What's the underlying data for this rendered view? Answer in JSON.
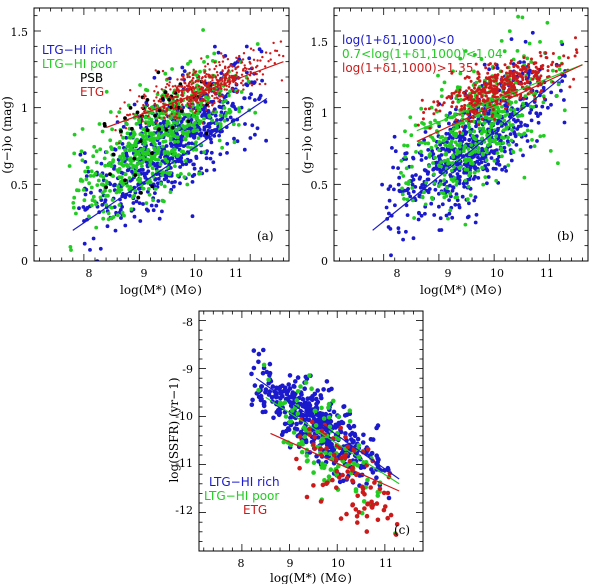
{
  "figure": {
    "width": 600,
    "height": 584
  },
  "colors": {
    "ltg_rich": "#1a1acc",
    "ltg_poor": "#22cc22",
    "psb": "#000000",
    "etg": "#cc1a1a"
  },
  "chart_data": [
    {
      "id": "a",
      "type": "scatter",
      "panel_label": "(a)",
      "xlabel": "log(M*) (M⊙)",
      "ylabel": "(g−i)o (mag)",
      "xlim": [
        7.1,
        11.7
      ],
      "ylim": [
        0,
        1.65
      ],
      "xticks": [
        "8",
        "9",
        "10",
        "11"
      ],
      "yticks": [
        "0",
        "0.5",
        "1",
        "1.5"
      ],
      "legend": [
        {
          "label": "LTG−HI rich",
          "color": "#1a1acc"
        },
        {
          "label": "LTG−HI poor",
          "color": "#22cc22"
        },
        {
          "label": "PSB",
          "color": "#000000"
        },
        {
          "label": "ETG",
          "color": "#cc1a1a"
        }
      ],
      "series": [
        {
          "name": "LTG−HI rich",
          "color": "#1a1acc",
          "n": 700,
          "xmean": 9.6,
          "xsd": 0.75,
          "slope": 0.26,
          "x0": 8,
          "y0": 0.34,
          "ysd": 0.16,
          "xmin": 7.9,
          "xmax": 11.3,
          "size": 1.9
        },
        {
          "name": "LTG−HI poor",
          "color": "#22cc22",
          "n": 600,
          "xmean": 9.3,
          "xsd": 0.7,
          "slope": 0.24,
          "x0": 8,
          "y0": 0.47,
          "ysd": 0.16,
          "xmin": 7.7,
          "xmax": 11.2,
          "size": 1.9
        },
        {
          "name": "PSB",
          "color": "#000000",
          "n": 45,
          "xmean": 9.2,
          "xsd": 0.55,
          "slope": 0.22,
          "x0": 8,
          "y0": 0.6,
          "ysd": 0.18,
          "xmin": 8.3,
          "xmax": 10.4,
          "size": 1.9
        },
        {
          "name": "ETG",
          "color": "#cc1a1a",
          "n": 480,
          "xmean": 10.1,
          "xsd": 0.6,
          "slope": 0.13,
          "x0": 8.5,
          "y0": 0.92,
          "ysd": 0.07,
          "xmin": 8.5,
          "xmax": 11.6,
          "size": 1.2
        }
      ],
      "fits": [
        {
          "color": "#1a1acc",
          "x": [
            7.8,
            11.3
          ],
          "y": [
            0.2,
            1.06
          ]
        },
        {
          "color": "#cc1a1a",
          "x": [
            8.4,
            11.6
          ],
          "y": [
            0.87,
            1.3
          ]
        }
      ]
    },
    {
      "id": "b",
      "type": "scatter",
      "panel_label": "(b)",
      "xlabel": "log(M*) (M⊙)",
      "ylabel": "(g−i)o (mag)",
      "xlim": [
        7.1,
        11.7
      ],
      "ylim": [
        0,
        1.65
      ],
      "xticks": [
        "8",
        "9",
        "10",
        "11"
      ],
      "yticks": [
        "0",
        "0.5",
        "1",
        "1.5"
      ],
      "legend": [
        {
          "label": "log(1+δ1,1000)<0",
          "color": "#1a1acc"
        },
        {
          "label": "0.7<log(1+δ1,1000)<1.04",
          "color": "#22cc22"
        },
        {
          "label": "log(1+δ1,1000)>1.35",
          "color": "#cc1a1a"
        }
      ],
      "series": [
        {
          "name": "log(1+δ1,1000)<0",
          "color": "#1a1acc",
          "n": 650,
          "xmean": 9.6,
          "xsd": 0.7,
          "slope": 0.26,
          "x0": 8,
          "y0": 0.34,
          "ysd": 0.17,
          "xmin": 7.9,
          "xmax": 11.3,
          "size": 1.9
        },
        {
          "name": "0.7<log(1+δ1,1000)<1.04",
          "color": "#22cc22",
          "n": 450,
          "xmean": 9.7,
          "xsd": 0.65,
          "slope": 0.22,
          "x0": 8,
          "y0": 0.5,
          "ysd": 0.2,
          "xmin": 8.3,
          "xmax": 11.3,
          "size": 1.9
        },
        {
          "name": "log(1+δ1,1000)>1.35",
          "color": "#cc1a1a",
          "n": 420,
          "xmean": 10.1,
          "xsd": 0.55,
          "slope": 0.13,
          "x0": 8.5,
          "y0": 0.92,
          "ysd": 0.07,
          "xmin": 8.6,
          "xmax": 11.5,
          "size": 1.5
        }
      ],
      "fits": [
        {
          "color": "#1a1acc",
          "x": [
            7.8,
            11.3
          ],
          "y": [
            0.2,
            1.22
          ]
        },
        {
          "color": "#22cc22",
          "x": [
            8.6,
            11.6
          ],
          "y": [
            0.85,
            1.28
          ]
        },
        {
          "color": "#cc1a1a",
          "x": [
            8.6,
            11.6
          ],
          "y": [
            0.78,
            1.28
          ]
        }
      ]
    },
    {
      "id": "c",
      "type": "scatter",
      "panel_label": "(c)",
      "xlabel": "log(M*) (M⊙)",
      "ylabel": "log(SSFR) (yr−1)",
      "xlim": [
        7.1,
        11.8
      ],
      "ylim": [
        -12.8,
        -7.8
      ],
      "xticks": [
        "8",
        "9",
        "10",
        "11"
      ],
      "yticks": [
        "-8",
        "-9",
        "-10",
        "-11",
        "-12"
      ],
      "legend": [
        {
          "label": "LTG−HI rich",
          "color": "#1a1acc"
        },
        {
          "label": "LTG−HI poor",
          "color": "#22cc22"
        },
        {
          "label": "ETG",
          "color": "#cc1a1a"
        }
      ],
      "series": [
        {
          "name": "LTG−HI rich",
          "color": "#1a1acc",
          "n": 460,
          "xmean": 9.6,
          "xsd": 0.65,
          "slope": -0.7,
          "x0": 8.3,
          "y0": -9.25,
          "ysd": 0.35,
          "xmin": 8.2,
          "xmax": 11.3,
          "size": 2.3
        },
        {
          "name": "LTG−HI poor",
          "color": "#22cc22",
          "n": 120,
          "xmean": 9.8,
          "xsd": 0.6,
          "slope": -0.72,
          "x0": 8.3,
          "y0": -9.55,
          "ysd": 0.45,
          "xmin": 8.3,
          "xmax": 11.3,
          "size": 2.3
        },
        {
          "name": "ETG",
          "color": "#cc1a1a",
          "n": 90,
          "xmean": 10.3,
          "xsd": 0.5,
          "slope": -0.6,
          "x0": 8.6,
          "y0": -10.3,
          "ysd": 0.45,
          "xmin": 8.7,
          "xmax": 11.3,
          "size": 2.3
        }
      ],
      "fits": [
        {
          "color": "#1a1acc",
          "x": [
            8.3,
            11.3
          ],
          "y": [
            -9.2,
            -11.3
          ]
        },
        {
          "color": "#22cc22",
          "x": [
            8.5,
            11.3
          ],
          "y": [
            -9.6,
            -11.4
          ]
        },
        {
          "color": "#cc1a1a",
          "x": [
            8.6,
            11.3
          ],
          "y": [
            -10.35,
            -11.55
          ]
        }
      ]
    }
  ]
}
